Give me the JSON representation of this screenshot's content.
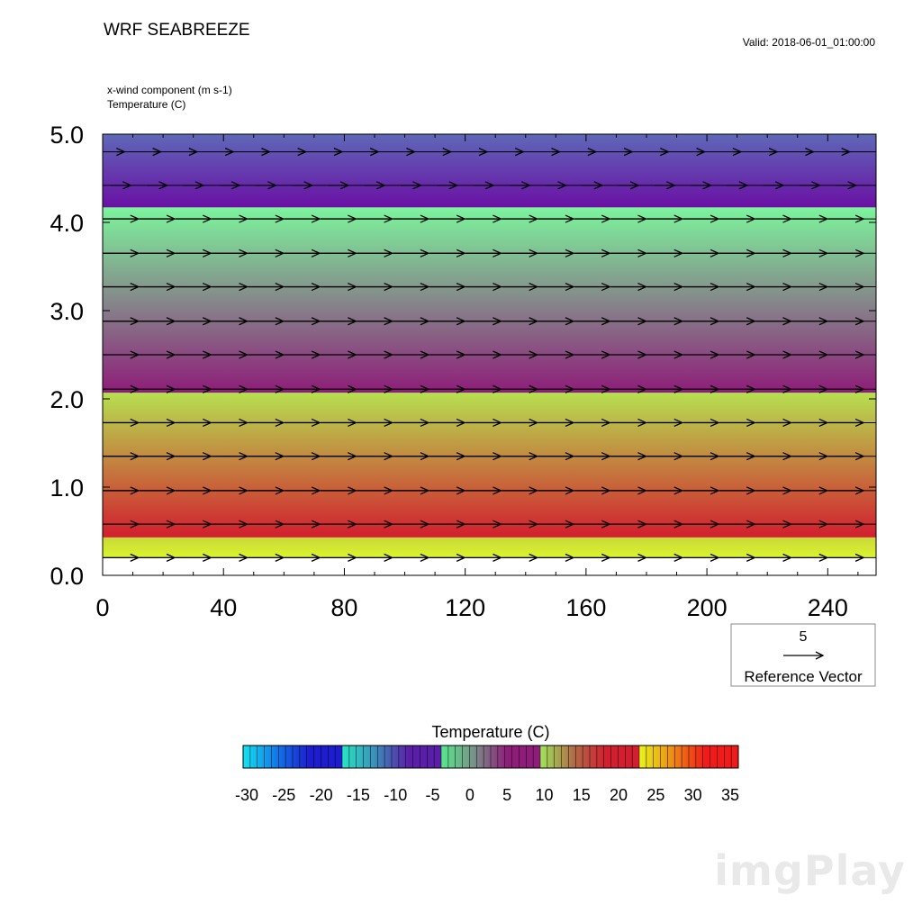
{
  "header": {
    "title": "WRF SEABREEZE",
    "valid": "Valid: 2018-06-01_01:00:00",
    "field1": "x-wind component   (m s-1)",
    "field2": "Temperature   (C)"
  },
  "reference_vector": {
    "value": "5",
    "label": "Reference Vector"
  },
  "colorbar": {
    "title": "Temperature  (C)",
    "ticks": [
      "-30",
      "-25",
      "-20",
      "-15",
      "-10",
      "-5",
      "0",
      "5",
      "10",
      "15",
      "20",
      "25",
      "30",
      "35"
    ]
  },
  "watermark": "imgPlay",
  "chart_data": {
    "type": "heatmap",
    "title": "WRF SEABREEZE",
    "x_ticks": [
      "0",
      "40",
      "80",
      "120",
      "160",
      "200",
      "240"
    ],
    "y_ticks": [
      "0.0",
      "1.0",
      "2.0",
      "3.0",
      "4.0",
      "5.0"
    ],
    "xlim": [
      0,
      256
    ],
    "ylim": [
      0,
      5
    ],
    "temperature_bands": [
      {
        "from": 0.0,
        "to": 0.2,
        "t_bottom": 37,
        "t_top": 37,
        "colors": [
          "#ffffff",
          "#ffffff"
        ]
      },
      {
        "from": 0.2,
        "to": 0.43,
        "t_bottom": 24,
        "t_top": 21,
        "colors": [
          "#dcf52c",
          "#c8d83a"
        ]
      },
      {
        "from": 0.43,
        "to": 2.07,
        "t_bottom": 20,
        "t_top": 10,
        "colors": [
          "#d21e2e",
          "#b6e050"
        ]
      },
      {
        "from": 2.07,
        "to": 4.17,
        "t_bottom": 9,
        "t_top": -4,
        "colors": [
          "#8e1d79",
          "#7cf59c"
        ]
      },
      {
        "from": 4.17,
        "to": 5.0,
        "t_bottom": -6,
        "t_top": -14,
        "colors": [
          "#6a10a4",
          "#5f68b8"
        ]
      }
    ],
    "wind_rows": [
      {
        "z": 0.2,
        "u": 7.0
      },
      {
        "z": 0.58,
        "u": 7.0
      },
      {
        "z": 0.96,
        "u": 7.0
      },
      {
        "z": 1.35,
        "u": 7.0
      },
      {
        "z": 1.73,
        "u": 7.0
      },
      {
        "z": 2.11,
        "u": 7.0
      },
      {
        "z": 2.5,
        "u": 7.0
      },
      {
        "z": 2.88,
        "u": 7.0
      },
      {
        "z": 3.27,
        "u": 7.0
      },
      {
        "z": 3.65,
        "u": 7.0
      },
      {
        "z": 4.04,
        "u": 7.0
      },
      {
        "z": 4.42,
        "u": 4.0
      },
      {
        "z": 4.8,
        "u": 1.5
      }
    ],
    "wind_x": [
      6,
      18,
      30,
      42,
      54,
      66,
      78,
      90,
      102,
      114,
      126,
      138,
      150,
      162,
      174,
      186,
      198,
      210,
      222,
      234,
      246
    ],
    "reference_vector_u": 5,
    "colorbar_colors": [
      "#11e4f0",
      "#1178e8",
      "#1d1dcf",
      "#27e5c4",
      "#3c8dba",
      "#5a1fa8",
      "#56e88c",
      "#7a8f88",
      "#8e1d79",
      "#9fe45a",
      "#b06c48",
      "#d21e2e",
      "#e8f518",
      "#ee8a16",
      "#f01a18"
    ]
  }
}
